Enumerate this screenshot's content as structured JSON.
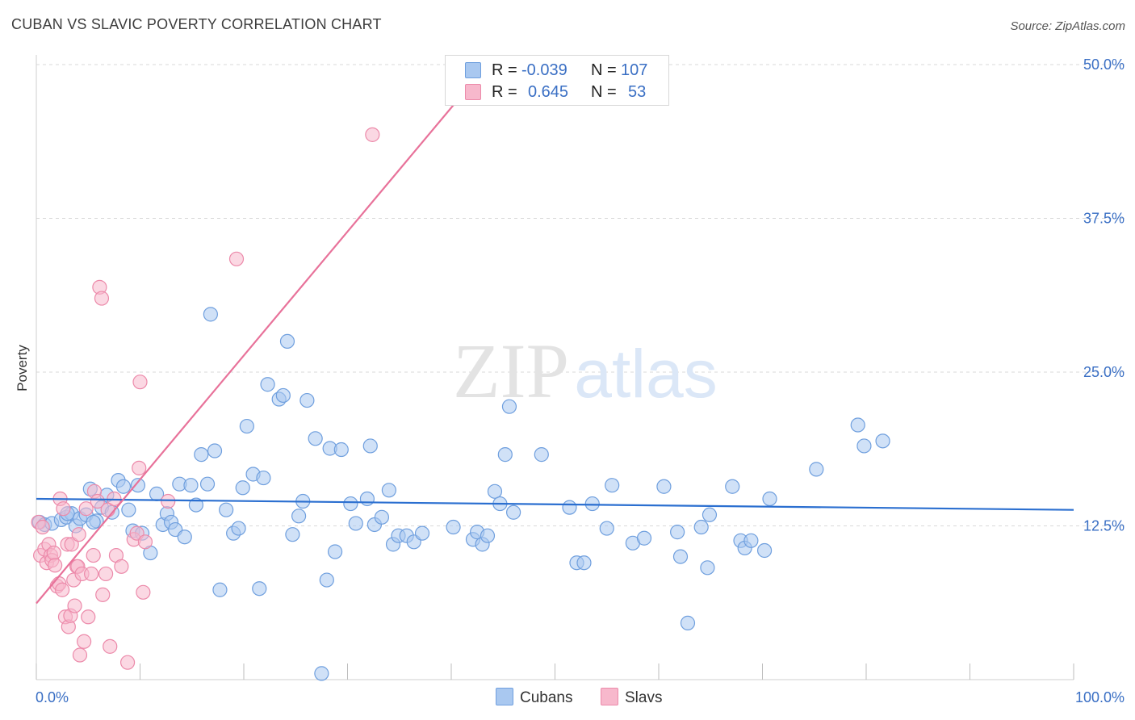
{
  "title": "CUBAN VS SLAVIC POVERTY CORRELATION CHART",
  "source": "Source: ZipAtlas.com",
  "watermark": {
    "zip": "ZIP",
    "atlas": "atlas"
  },
  "colors": {
    "cubans_fill": "#a9c8f0",
    "cubans_stroke": "#6f9fde",
    "cubans_line": "#2b6fd0",
    "slavs_fill": "#f7b8cc",
    "slavs_stroke": "#ec8aaa",
    "slavs_line": "#e8729a",
    "axis_text": "#3a6fc4",
    "grid": "#d9d9d9"
  },
  "legend": {
    "rows": [
      {
        "r_label": "R =",
        "r_value": "-0.039",
        "n_label": "N =",
        "n_value": "107"
      },
      {
        "r_label": "R =",
        "r_value": "0.645",
        "n_label": "N =",
        "n_value": "53"
      }
    ]
  },
  "bottom_legend": {
    "cubans": "Cubans",
    "slavs": "Slavs"
  },
  "chart_data": {
    "type": "scatter",
    "title": "CUBAN VS SLAVIC POVERTY CORRELATION CHART",
    "xlabel": "",
    "ylabel": "Poverty",
    "xlim": [
      0,
      100
    ],
    "ylim": [
      0,
      50
    ],
    "x_tick_labels": [
      "0.0%",
      "100.0%"
    ],
    "y_ticks": [
      12.5,
      25.0,
      37.5,
      50.0
    ],
    "y_tick_labels": [
      "12.5%",
      "25.0%",
      "37.5%",
      "50.0%"
    ],
    "grid": true,
    "legend_position": "top-center",
    "series": [
      {
        "name": "Cubans",
        "r": -0.039,
        "n": 107,
        "trend": {
          "x0": 0,
          "y0": 14.7,
          "x1": 100,
          "y1": 13.8
        },
        "points": [
          [
            0.3,
            12.8
          ],
          [
            0.8,
            12.6
          ],
          [
            1.5,
            12.7
          ],
          [
            2.4,
            13.0
          ],
          [
            2.9,
            13.2
          ],
          [
            3.4,
            13.5
          ],
          [
            3.8,
            12.5
          ],
          [
            4.2,
            13.1
          ],
          [
            4.8,
            13.4
          ],
          [
            5.2,
            15.5
          ],
          [
            5.8,
            12.9
          ],
          [
            6.3,
            14.0
          ],
          [
            6.8,
            15.0
          ],
          [
            7.3,
            13.6
          ],
          [
            7.9,
            16.2
          ],
          [
            8.4,
            15.7
          ],
          [
            8.9,
            13.8
          ],
          [
            9.3,
            12.1
          ],
          [
            9.8,
            15.8
          ],
          [
            10.2,
            11.9
          ],
          [
            11.0,
            10.3
          ],
          [
            11.6,
            15.1
          ],
          [
            12.2,
            12.6
          ],
          [
            12.6,
            13.5
          ],
          [
            13.0,
            12.8
          ],
          [
            13.4,
            12.2
          ],
          [
            13.8,
            15.9
          ],
          [
            14.3,
            11.6
          ],
          [
            14.9,
            15.8
          ],
          [
            15.4,
            14.2
          ],
          [
            15.9,
            18.3
          ],
          [
            16.5,
            15.9
          ],
          [
            16.8,
            29.7
          ],
          [
            17.2,
            18.6
          ],
          [
            17.7,
            7.3
          ],
          [
            18.3,
            13.8
          ],
          [
            19.0,
            11.9
          ],
          [
            19.5,
            12.3
          ],
          [
            19.9,
            15.6
          ],
          [
            20.3,
            20.6
          ],
          [
            20.9,
            16.7
          ],
          [
            21.5,
            7.4
          ],
          [
            21.9,
            16.4
          ],
          [
            22.3,
            24.0
          ],
          [
            23.4,
            22.8
          ],
          [
            23.8,
            23.1
          ],
          [
            24.2,
            27.5
          ],
          [
            24.7,
            11.8
          ],
          [
            25.3,
            13.3
          ],
          [
            25.7,
            14.5
          ],
          [
            26.1,
            22.7
          ],
          [
            26.9,
            19.6
          ],
          [
            27.5,
            0.5
          ],
          [
            28.0,
            8.1
          ],
          [
            28.3,
            18.8
          ],
          [
            28.8,
            10.4
          ],
          [
            29.4,
            18.7
          ],
          [
            30.3,
            14.3
          ],
          [
            30.8,
            12.7
          ],
          [
            31.9,
            14.7
          ],
          [
            32.2,
            19.0
          ],
          [
            32.6,
            12.6
          ],
          [
            33.3,
            13.2
          ],
          [
            34.0,
            15.4
          ],
          [
            34.4,
            11.0
          ],
          [
            34.9,
            11.7
          ],
          [
            35.7,
            11.7
          ],
          [
            36.4,
            11.2
          ],
          [
            37.2,
            11.9
          ],
          [
            40.2,
            12.4
          ],
          [
            42.1,
            11.4
          ],
          [
            42.5,
            12.0
          ],
          [
            43.0,
            11.0
          ],
          [
            43.5,
            11.7
          ],
          [
            44.2,
            15.3
          ],
          [
            44.7,
            14.3
          ],
          [
            45.2,
            18.3
          ],
          [
            45.6,
            22.2
          ],
          [
            46.0,
            13.6
          ],
          [
            48.7,
            18.3
          ],
          [
            51.4,
            14.0
          ],
          [
            52.1,
            9.5
          ],
          [
            52.8,
            9.5
          ],
          [
            53.6,
            14.3
          ],
          [
            55.0,
            12.3
          ],
          [
            55.5,
            15.8
          ],
          [
            57.5,
            11.1
          ],
          [
            58.6,
            11.5
          ],
          [
            60.5,
            15.7
          ],
          [
            61.8,
            12.0
          ],
          [
            62.1,
            10.0
          ],
          [
            62.8,
            4.6
          ],
          [
            64.1,
            12.4
          ],
          [
            64.7,
            9.1
          ],
          [
            64.9,
            13.4
          ],
          [
            67.1,
            15.7
          ],
          [
            67.9,
            11.3
          ],
          [
            68.3,
            10.7
          ],
          [
            68.9,
            11.3
          ],
          [
            70.2,
            10.5
          ],
          [
            70.7,
            14.7
          ],
          [
            75.2,
            17.1
          ],
          [
            79.2,
            20.7
          ],
          [
            79.8,
            19.0
          ],
          [
            81.6,
            19.4
          ],
          [
            3.0,
            13.5
          ],
          [
            5.5,
            12.8
          ]
        ]
      },
      {
        "name": "Slavs",
        "r": 0.645,
        "n": 53,
        "trend": {
          "x0": 0,
          "y0": 6.2,
          "x1": 40.4,
          "y1": 46.9
        },
        "points": [
          [
            0.2,
            12.8
          ],
          [
            0.4,
            10.1
          ],
          [
            0.6,
            12.4
          ],
          [
            0.8,
            10.6
          ],
          [
            1.0,
            9.5
          ],
          [
            1.2,
            11.0
          ],
          [
            1.4,
            10.1
          ],
          [
            1.5,
            9.7
          ],
          [
            1.7,
            10.3
          ],
          [
            1.8,
            9.3
          ],
          [
            2.0,
            7.6
          ],
          [
            2.2,
            7.8
          ],
          [
            2.3,
            14.7
          ],
          [
            2.5,
            7.3
          ],
          [
            2.6,
            13.9
          ],
          [
            2.8,
            5.1
          ],
          [
            3.0,
            11.0
          ],
          [
            3.1,
            4.3
          ],
          [
            3.3,
            5.2
          ],
          [
            3.4,
            11.0
          ],
          [
            3.6,
            8.1
          ],
          [
            3.7,
            6.0
          ],
          [
            3.9,
            9.2
          ],
          [
            4.0,
            9.2
          ],
          [
            4.1,
            11.8
          ],
          [
            4.2,
            2.0
          ],
          [
            4.4,
            8.6
          ],
          [
            4.6,
            3.1
          ],
          [
            4.8,
            13.9
          ],
          [
            5.0,
            5.1
          ],
          [
            5.3,
            8.6
          ],
          [
            5.5,
            10.1
          ],
          [
            5.6,
            15.3
          ],
          [
            5.9,
            14.5
          ],
          [
            6.1,
            31.9
          ],
          [
            6.3,
            31.0
          ],
          [
            6.4,
            6.9
          ],
          [
            6.7,
            8.6
          ],
          [
            6.9,
            13.8
          ],
          [
            7.1,
            2.7
          ],
          [
            7.5,
            14.7
          ],
          [
            7.7,
            10.1
          ],
          [
            8.2,
            9.2
          ],
          [
            8.8,
            1.4
          ],
          [
            9.4,
            11.4
          ],
          [
            9.7,
            11.9
          ],
          [
            9.9,
            17.2
          ],
          [
            10.0,
            24.2
          ],
          [
            10.3,
            7.1
          ],
          [
            10.5,
            11.2
          ],
          [
            12.7,
            14.5
          ],
          [
            19.3,
            34.2
          ],
          [
            32.4,
            44.3
          ]
        ]
      }
    ]
  }
}
